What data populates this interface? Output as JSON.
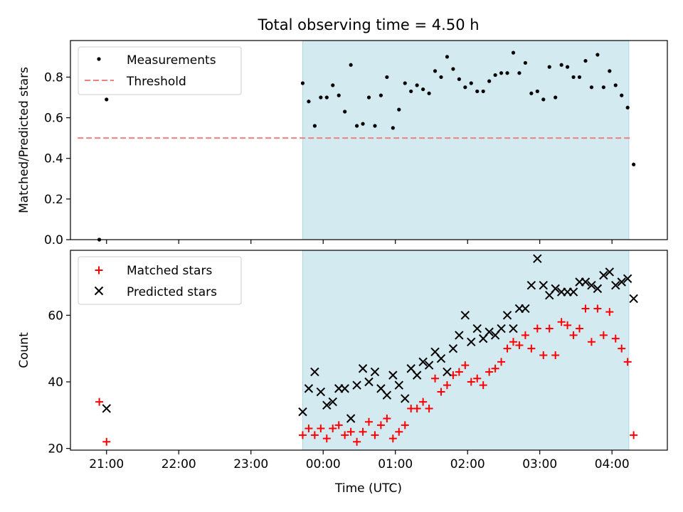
{
  "figure": {
    "title": "Total observing time = 4.50 h"
  },
  "colors": {
    "shade": "#d3eaf0",
    "threshold": "#f08080",
    "matched": "#ff0000",
    "predicted": "#000000",
    "measurements": "#000000"
  },
  "chart_data": [
    {
      "type": "scatter",
      "ylabel": "Matched/Predicted stars",
      "xlabel": "",
      "ylim": [
        0,
        0.98
      ],
      "yticks": [
        "0.0",
        "0.2",
        "0.4",
        "0.6",
        "0.8"
      ],
      "xlim": [
        "20:30",
        "04:46"
      ],
      "shaded_interval": [
        "23:43",
        "04:14"
      ],
      "legend": {
        "position": "top-left",
        "entries": [
          "Measurements",
          "Threshold"
        ]
      },
      "threshold": {
        "name": "Threshold",
        "y": 0.5,
        "x_range": [
          "20:36",
          "04:16"
        ]
      },
      "series": [
        {
          "name": "Measurements",
          "points": [
            [
              "20:54",
              0.0
            ],
            [
              "21:00",
              0.69
            ],
            [
              "23:43",
              0.77
            ],
            [
              "23:48",
              0.68
            ],
            [
              "23:53",
              0.56
            ],
            [
              "23:58",
              0.7
            ],
            [
              "00:03",
              0.7
            ],
            [
              "00:08",
              0.76
            ],
            [
              "00:13",
              0.71
            ],
            [
              "00:18",
              0.63
            ],
            [
              "00:23",
              0.86
            ],
            [
              "00:28",
              0.56
            ],
            [
              "00:33",
              0.57
            ],
            [
              "00:38",
              0.7
            ],
            [
              "00:43",
              0.56
            ],
            [
              "00:48",
              0.71
            ],
            [
              "00:53",
              0.8
            ],
            [
              "00:58",
              0.55
            ],
            [
              "01:03",
              0.64
            ],
            [
              "01:08",
              0.77
            ],
            [
              "01:13",
              0.73
            ],
            [
              "01:18",
              0.76
            ],
            [
              "01:23",
              0.74
            ],
            [
              "01:28",
              0.72
            ],
            [
              "01:33",
              0.83
            ],
            [
              "01:38",
              0.8
            ],
            [
              "01:43",
              0.9
            ],
            [
              "01:48",
              0.84
            ],
            [
              "01:53",
              0.79
            ],
            [
              "01:58",
              0.75
            ],
            [
              "02:03",
              0.77
            ],
            [
              "02:08",
              0.73
            ],
            [
              "02:13",
              0.73
            ],
            [
              "02:18",
              0.78
            ],
            [
              "02:23",
              0.81
            ],
            [
              "02:28",
              0.82
            ],
            [
              "02:33",
              0.82
            ],
            [
              "02:38",
              0.92
            ],
            [
              "02:43",
              0.82
            ],
            [
              "02:48",
              0.87
            ],
            [
              "02:53",
              0.72
            ],
            [
              "02:58",
              0.73
            ],
            [
              "03:03",
              0.69
            ],
            [
              "03:08",
              0.85
            ],
            [
              "03:13",
              0.7
            ],
            [
              "03:18",
              0.86
            ],
            [
              "03:23",
              0.85
            ],
            [
              "03:28",
              0.8
            ],
            [
              "03:33",
              0.8
            ],
            [
              "03:38",
              0.88
            ],
            [
              "03:43",
              0.75
            ],
            [
              "03:48",
              0.91
            ],
            [
              "03:53",
              0.75
            ],
            [
              "03:58",
              0.83
            ],
            [
              "04:03",
              0.76
            ],
            [
              "04:08",
              0.71
            ],
            [
              "04:13",
              0.65
            ],
            [
              "04:18",
              0.37
            ]
          ]
        }
      ]
    },
    {
      "type": "scatter",
      "ylabel": "Count",
      "xlabel": "Time (UTC)",
      "ylim": [
        19.5,
        79.5
      ],
      "yticks": [
        "20",
        "40",
        "60"
      ],
      "xticks": [
        "21:00",
        "22:00",
        "23:00",
        "00:00",
        "01:00",
        "02:00",
        "03:00",
        "04:00"
      ],
      "xlim": [
        "20:30",
        "04:46"
      ],
      "shaded_interval": [
        "23:43",
        "04:14"
      ],
      "legend": {
        "position": "top-left",
        "entries": [
          "Matched stars",
          "Predicted stars"
        ]
      },
      "series": [
        {
          "name": "Matched stars",
          "marker": "plus",
          "points": [
            [
              "20:54",
              34
            ],
            [
              "21:00",
              22
            ],
            [
              "23:43",
              24
            ],
            [
              "23:48",
              26
            ],
            [
              "23:53",
              24
            ],
            [
              "23:58",
              26
            ],
            [
              "00:03",
              23
            ],
            [
              "00:08",
              26
            ],
            [
              "00:13",
              27
            ],
            [
              "00:18",
              24
            ],
            [
              "00:23",
              25
            ],
            [
              "00:28",
              22
            ],
            [
              "00:33",
              25
            ],
            [
              "00:38",
              28
            ],
            [
              "00:43",
              24
            ],
            [
              "00:48",
              27
            ],
            [
              "00:53",
              29
            ],
            [
              "00:58",
              23
            ],
            [
              "01:03",
              25
            ],
            [
              "01:08",
              27
            ],
            [
              "01:13",
              32
            ],
            [
              "01:18",
              32
            ],
            [
              "01:23",
              34
            ],
            [
              "01:28",
              32
            ],
            [
              "01:33",
              41
            ],
            [
              "01:38",
              37
            ],
            [
              "01:43",
              39
            ],
            [
              "01:48",
              42
            ],
            [
              "01:53",
              43
            ],
            [
              "01:58",
              45
            ],
            [
              "02:03",
              40
            ],
            [
              "02:08",
              41
            ],
            [
              "02:13",
              39
            ],
            [
              "02:18",
              43
            ],
            [
              "02:23",
              44
            ],
            [
              "02:28",
              46
            ],
            [
              "02:33",
              50
            ],
            [
              "02:38",
              52
            ],
            [
              "02:43",
              51
            ],
            [
              "02:48",
              54
            ],
            [
              "02:53",
              50
            ],
            [
              "02:58",
              56
            ],
            [
              "03:03",
              48
            ],
            [
              "03:08",
              56
            ],
            [
              "03:13",
              48
            ],
            [
              "03:18",
              58
            ],
            [
              "03:23",
              57
            ],
            [
              "03:28",
              54
            ],
            [
              "03:33",
              56
            ],
            [
              "03:38",
              62
            ],
            [
              "03:43",
              52
            ],
            [
              "03:48",
              62
            ],
            [
              "03:53",
              54
            ],
            [
              "03:58",
              61
            ],
            [
              "04:03",
              53
            ],
            [
              "04:08",
              50
            ],
            [
              "04:13",
              46
            ],
            [
              "04:18",
              24
            ]
          ]
        },
        {
          "name": "Predicted stars",
          "marker": "x",
          "points": [
            [
              "21:00",
              32
            ],
            [
              "23:43",
              31
            ],
            [
              "23:48",
              38
            ],
            [
              "23:53",
              43
            ],
            [
              "23:58",
              37
            ],
            [
              "00:03",
              33
            ],
            [
              "00:08",
              34
            ],
            [
              "00:13",
              38
            ],
            [
              "00:18",
              38
            ],
            [
              "00:23",
              29
            ],
            [
              "00:28",
              39
            ],
            [
              "00:33",
              44
            ],
            [
              "00:38",
              40
            ],
            [
              "00:43",
              43
            ],
            [
              "00:48",
              38
            ],
            [
              "00:53",
              36
            ],
            [
              "00:58",
              42
            ],
            [
              "01:03",
              39
            ],
            [
              "01:08",
              35
            ],
            [
              "01:13",
              44
            ],
            [
              "01:18",
              42
            ],
            [
              "01:23",
              46
            ],
            [
              "01:28",
              45
            ],
            [
              "01:33",
              49
            ],
            [
              "01:38",
              47
            ],
            [
              "01:43",
              43
            ],
            [
              "01:48",
              50
            ],
            [
              "01:53",
              54
            ],
            [
              "01:58",
              60
            ],
            [
              "02:03",
              52
            ],
            [
              "02:08",
              56
            ],
            [
              "02:13",
              53
            ],
            [
              "02:18",
              55
            ],
            [
              "02:23",
              54
            ],
            [
              "02:28",
              56
            ],
            [
              "02:33",
              60
            ],
            [
              "02:38",
              56
            ],
            [
              "02:43",
              62
            ],
            [
              "02:48",
              62
            ],
            [
              "02:53",
              69
            ],
            [
              "02:58",
              77
            ],
            [
              "03:03",
              69
            ],
            [
              "03:08",
              66
            ],
            [
              "03:13",
              68
            ],
            [
              "03:18",
              67
            ],
            [
              "03:23",
              67
            ],
            [
              "03:28",
              67
            ],
            [
              "03:33",
              70
            ],
            [
              "03:38",
              70
            ],
            [
              "03:43",
              69
            ],
            [
              "03:48",
              68
            ],
            [
              "03:53",
              72
            ],
            [
              "03:58",
              73
            ],
            [
              "04:03",
              69
            ],
            [
              "04:08",
              70
            ],
            [
              "04:13",
              71
            ],
            [
              "04:18",
              65
            ]
          ]
        }
      ]
    }
  ]
}
